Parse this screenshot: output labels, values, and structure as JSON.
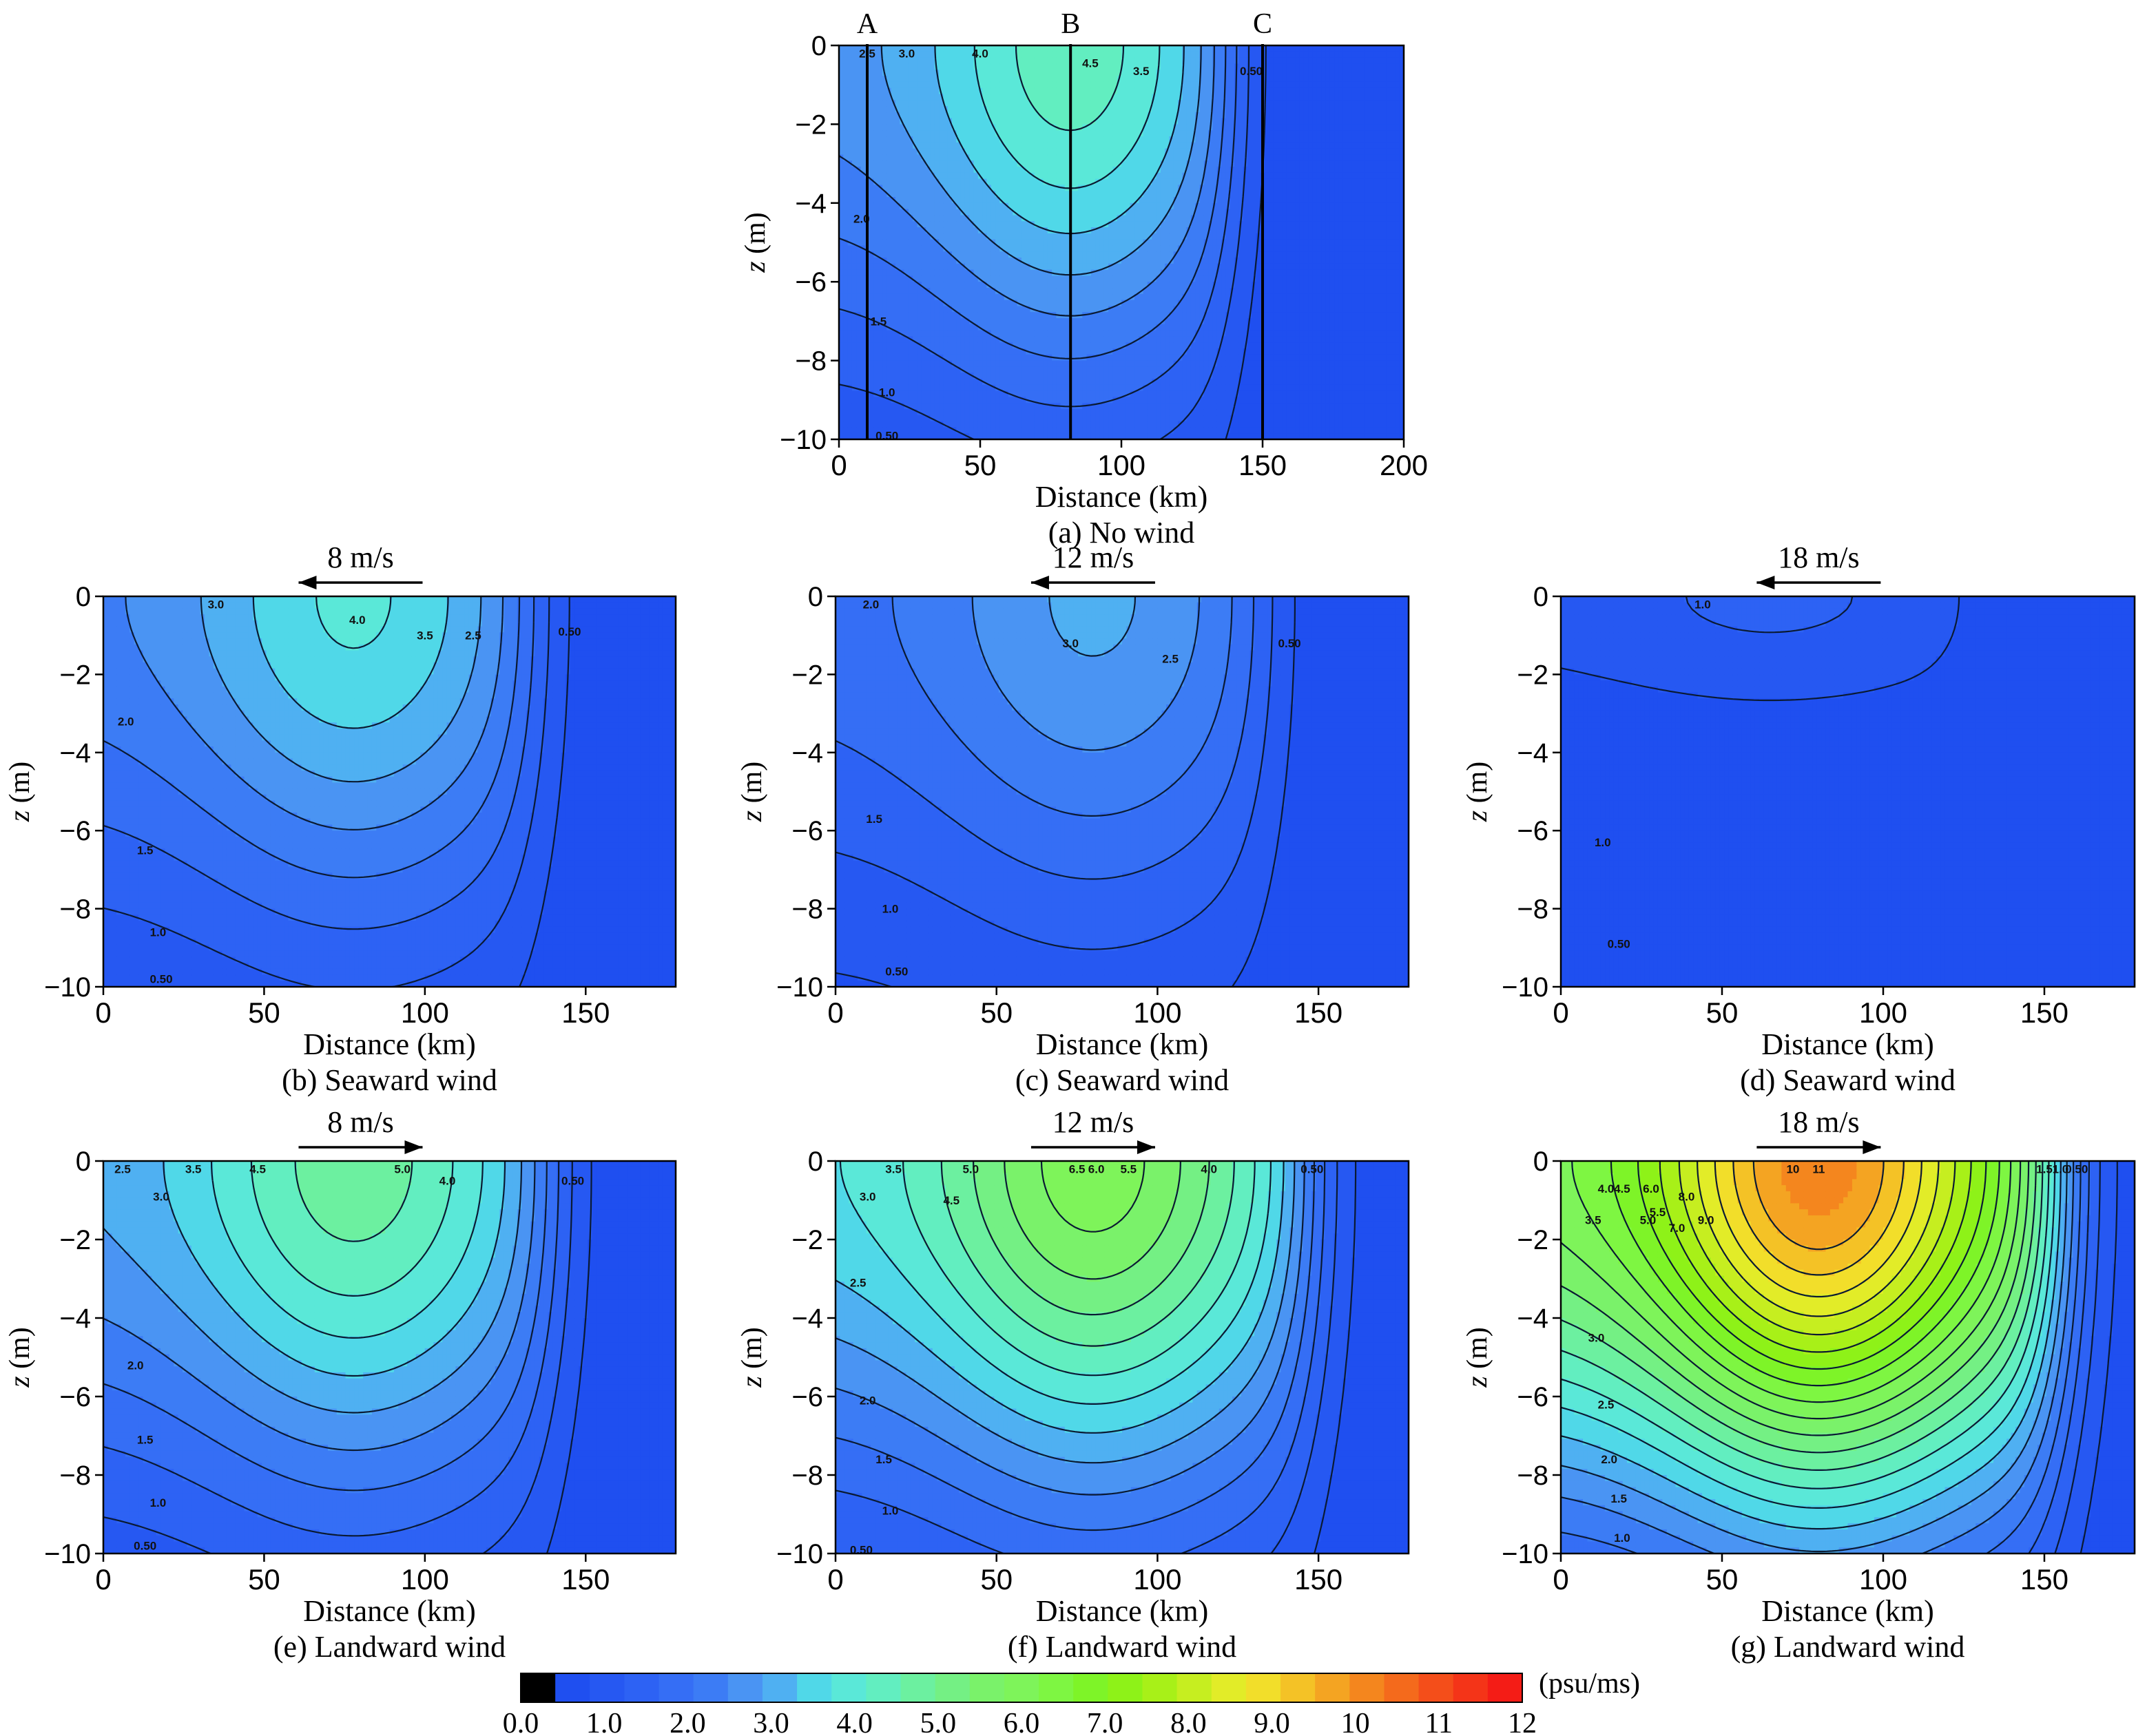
{
  "chart_data": [
    {
      "panel": "a",
      "type": "heatmap",
      "caption": "(a) No wind",
      "xlabel": "Distance (km)",
      "ylabel": "z (m)",
      "xlim": [
        0,
        200
      ],
      "ylim": [
        -10,
        0
      ],
      "xticks": [
        "0",
        "50",
        "100",
        "150",
        "200"
      ],
      "yticks": [
        "0",
        "−2",
        "−4",
        "−6",
        "−8",
        "−10"
      ],
      "wind": null,
      "field": {
        "vmax": 4.8,
        "center_km": 82,
        "plume_km": 140,
        "sx": 50,
        "k": 8.5
      },
      "contour_levels": [
        0.5,
        1.0,
        1.5,
        2.0,
        2.5,
        3.0,
        3.5,
        4.0,
        4.5
      ],
      "contour_labels": [
        "2.5",
        "3.0",
        "4.0",
        "4.5",
        "3.5",
        "0.50",
        "2.0",
        "1.5",
        "1.0",
        "0.50"
      ],
      "sections": [
        {
          "name": "A",
          "x": 10
        },
        {
          "name": "B",
          "x": 82
        },
        {
          "name": "C",
          "x": 150
        }
      ]
    },
    {
      "panel": "b",
      "type": "heatmap",
      "caption": "(b) Seaward wind",
      "xlabel": "Distance (km)",
      "ylabel": "z (m)",
      "xlim": [
        0,
        178
      ],
      "ylim": [
        -10,
        0
      ],
      "xticks": [
        "0",
        "50",
        "100",
        "150"
      ],
      "yticks": [
        "0",
        "−2",
        "−4",
        "−6",
        "−8",
        "−10"
      ],
      "wind": {
        "speed": "8 m/s",
        "direction": "seaward"
      },
      "field": {
        "vmax": 4.1,
        "center_km": 78,
        "plume_km": 135,
        "sx": 50,
        "k": 8.5
      },
      "contour_levels": [
        0.5,
        1.0,
        1.5,
        2.0,
        2.5,
        3.0,
        3.5,
        4.0
      ],
      "contour_labels": [
        "3.0",
        "4.0",
        "3.5",
        "2.5",
        "0.50",
        "2.0",
        "1.5",
        "1.0",
        "0.50"
      ]
    },
    {
      "panel": "c",
      "type": "heatmap",
      "caption": "(c) Seaward wind",
      "xlabel": "Distance (km)",
      "ylabel": "z (m)",
      "xlim": [
        0,
        178
      ],
      "ylim": [
        -10,
        0
      ],
      "xticks": [
        "0",
        "50",
        "100",
        "150"
      ],
      "yticks": [
        "0",
        "−2",
        "−4",
        "−6",
        "−8",
        "−10"
      ],
      "wind": {
        "speed": "12 m/s",
        "direction": "seaward"
      },
      "field": {
        "vmax": 3.1,
        "center_km": 80,
        "plume_km": 135,
        "sx": 50,
        "k": 8.5
      },
      "contour_levels": [
        0.5,
        1.0,
        1.5,
        2.0,
        2.5,
        3.0
      ],
      "contour_labels": [
        "2.0",
        "3.0",
        "2.5",
        "0.50",
        "1.5",
        "1.0",
        "0.50"
      ]
    },
    {
      "panel": "d",
      "type": "heatmap",
      "caption": "(d) Seaward wind",
      "xlabel": "Distance (km)",
      "ylabel": "z (m)",
      "xlim": [
        0,
        178
      ],
      "ylim": [
        -10,
        0
      ],
      "xticks": [
        "0",
        "50",
        "100",
        "150"
      ],
      "yticks": [
        "0",
        "−2",
        "−4",
        "−6",
        "−8",
        "−10"
      ],
      "wind": {
        "speed": "18 m/s",
        "direction": "seaward"
      },
      "field": {
        "vmax": 1.1,
        "center_km": 65,
        "plume_km": 128,
        "sx": 55,
        "k": 3.0
      },
      "contour_levels": [
        0.5,
        1.0
      ],
      "contour_labels": [
        "1.0",
        "1.0",
        "0.50"
      ]
    },
    {
      "panel": "e",
      "type": "heatmap",
      "caption": "(e) Landward wind",
      "xlabel": "Distance (km)",
      "ylabel": "z (m)",
      "xlim": [
        0,
        178
      ],
      "ylim": [
        -10,
        0
      ],
      "xticks": [
        "0",
        "50",
        "100",
        "150"
      ],
      "yticks": [
        "0",
        "−2",
        "−4",
        "−6",
        "−8",
        "−10"
      ],
      "wind": {
        "speed": "8 m/s",
        "direction": "landward"
      },
      "field": {
        "vmax": 5.3,
        "center_km": 78,
        "plume_km": 140,
        "sx": 50,
        "k": 8.5
      },
      "contour_levels": [
        0.5,
        1.0,
        1.5,
        2.0,
        2.5,
        3.0,
        3.5,
        4.0,
        4.5,
        5.0
      ],
      "contour_labels": [
        "2.5",
        "3.5",
        "4.5",
        "5.0",
        "4.0",
        "3.0",
        "0.50",
        "2.0",
        "1.5",
        "1.0",
        "0.50"
      ]
    },
    {
      "panel": "f",
      "type": "heatmap",
      "caption": "(f) Landward wind",
      "xlabel": "Distance (km)",
      "ylabel": "z (m)",
      "xlim": [
        0,
        178
      ],
      "ylim": [
        -10,
        0
      ],
      "xticks": [
        "0",
        "50",
        "100",
        "150"
      ],
      "yticks": [
        "0",
        "−2",
        "−4",
        "−6",
        "−8",
        "−10"
      ],
      "wind": {
        "speed": "12 m/s",
        "direction": "landward"
      },
      "field": {
        "vmax": 6.8,
        "center_km": 80,
        "plume_km": 148,
        "sx": 50,
        "k": 8.5
      },
      "contour_levels": [
        0.5,
        1.0,
        1.5,
        2.0,
        2.5,
        3.0,
        3.5,
        4.0,
        4.5,
        5.0,
        5.5,
        6.0,
        6.5
      ],
      "contour_labels": [
        "3.5",
        "5.0",
        "6.5",
        "6.0",
        "5.5",
        "4.0",
        "0.50",
        "3.0",
        "4.5",
        "2.5",
        "2.0",
        "1.5",
        "1.0",
        "0.50"
      ]
    },
    {
      "panel": "g",
      "type": "heatmap",
      "caption": "(g) Landward wind",
      "xlabel": "Distance (km)",
      "ylabel": "z (m)",
      "xlim": [
        0,
        178
      ],
      "ylim": [
        -10,
        0
      ],
      "xticks": [
        "0",
        "50",
        "100",
        "150"
      ],
      "yticks": [
        "0",
        "−2",
        "−4",
        "−6",
        "−8",
        "−10"
      ],
      "wind": {
        "speed": "18 m/s",
        "direction": "landward"
      },
      "field": {
        "vmax": 11.8,
        "center_km": 80,
        "plume_km": 155,
        "sx": 50,
        "k": 8.5
      },
      "contour_levels": [
        0.5,
        1.0,
        1.5,
        2.0,
        2.5,
        3.0,
        3.5,
        4.0,
        4.5,
        5.0,
        5.5,
        6.0,
        6.5,
        7.0,
        7.5,
        8.0,
        8.5,
        9.0,
        9.5,
        10.0,
        10.5,
        11.0
      ],
      "contour_labels": [
        "4.0",
        "4.5",
        "6.0",
        "10",
        "11",
        "1.5",
        "1.0",
        "0.50",
        "3.5",
        "5.0",
        "5.5",
        "8.0",
        "7.0",
        "9.0",
        "3.0",
        "2.5",
        "2.0",
        "1.5",
        "1.0"
      ]
    }
  ],
  "colorbar": {
    "unit": "(psu/ms)",
    "tick_labels": [
      "0.0",
      "1.0",
      "2.0",
      "3.0",
      "4.0",
      "5.0",
      "6.0",
      "7.0",
      "8.0",
      "9.0",
      "10",
      "11",
      "12"
    ],
    "colors": [
      "#000000",
      "#1f4ff0",
      "#2658f2",
      "#2d62f4",
      "#356ef5",
      "#3c7cf5",
      "#4a94f3",
      "#4fb0f2",
      "#50d8e8",
      "#5ae8d8",
      "#62eec0",
      "#6cf0a0",
      "#74f084",
      "#7af26a",
      "#7ef45a",
      "#7ef642",
      "#7ef428",
      "#8ef218",
      "#a8f018",
      "#c6ee20",
      "#e2ec28",
      "#f2de2a",
      "#f4c226",
      "#f4a422",
      "#f4861e",
      "#f46a1c",
      "#f44e1a",
      "#f43418",
      "#f41c16"
    ]
  }
}
